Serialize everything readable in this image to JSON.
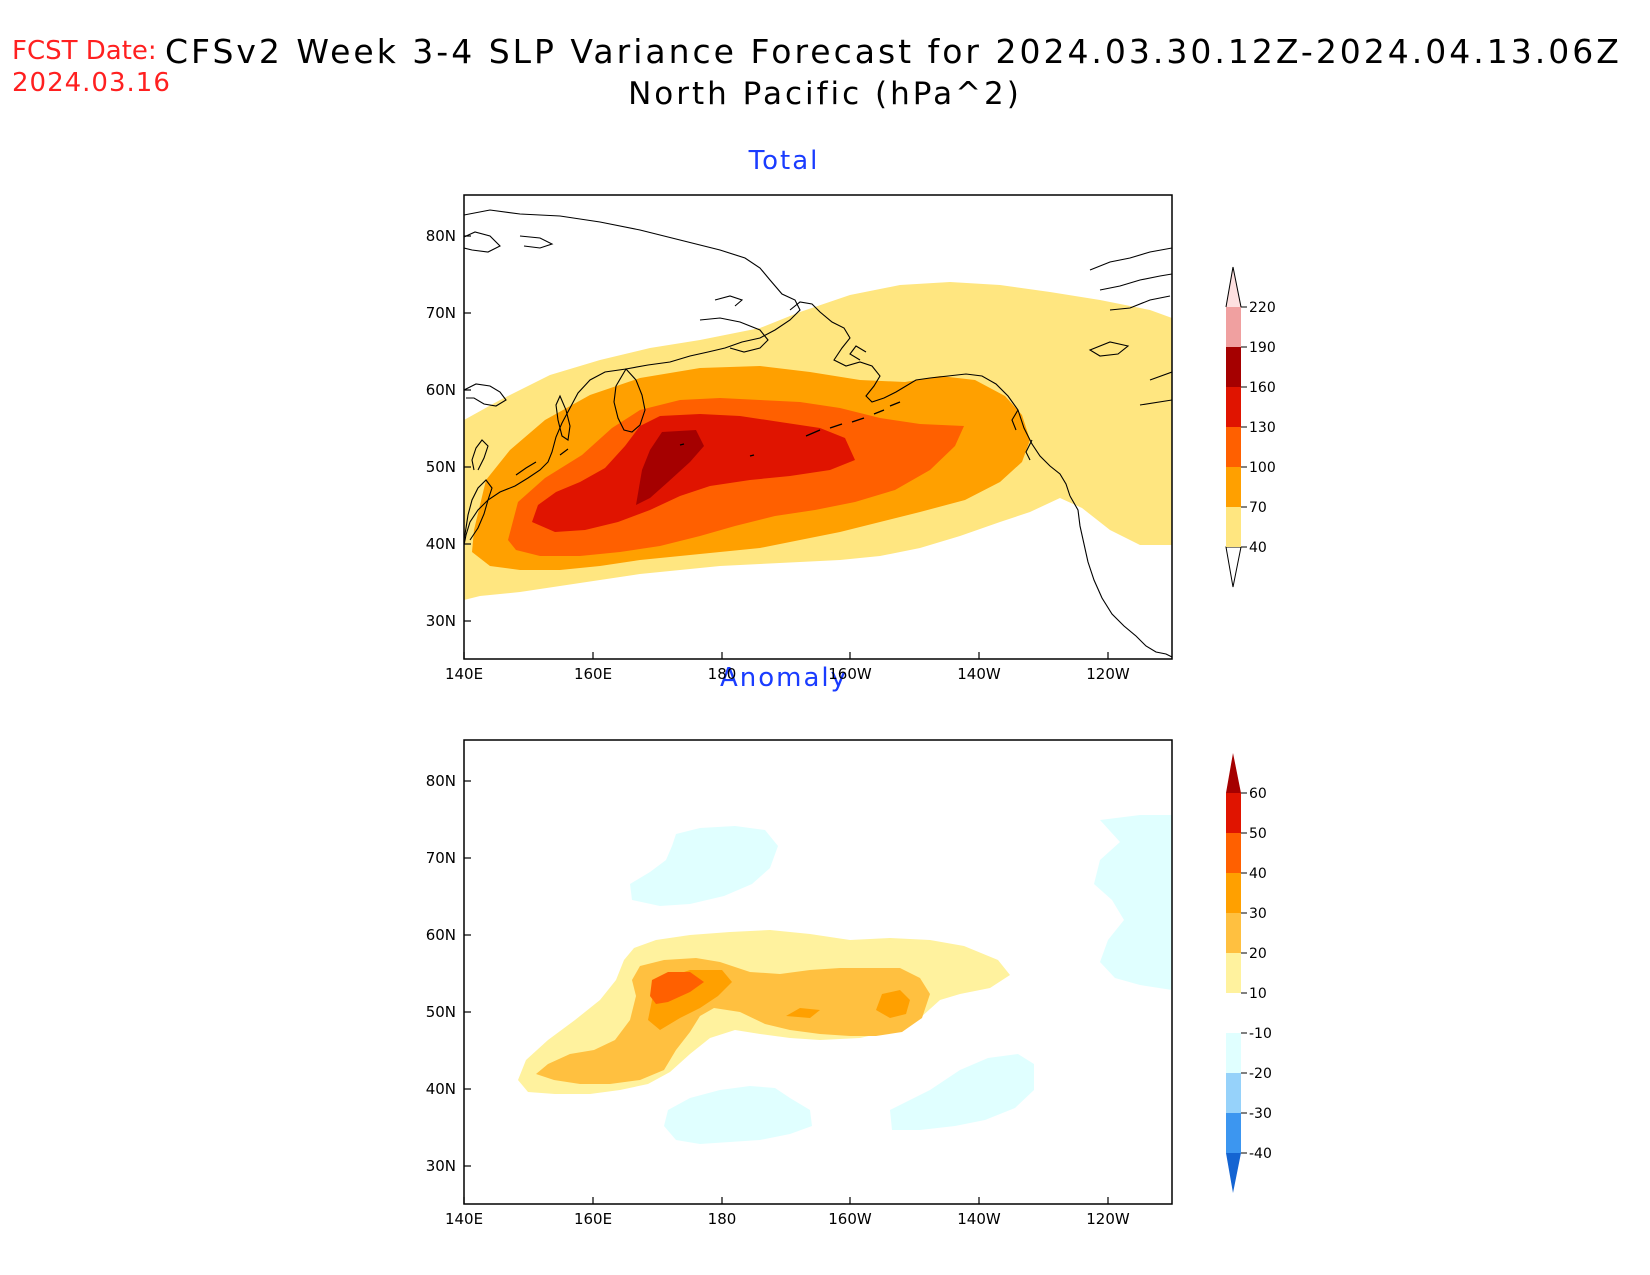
{
  "header": {
    "fcst_label": "FCST Date:",
    "fcst_date": "2024.03.16",
    "title": "CFSv2 Week 3-4 SLP Variance Forecast for 2024.03.30.12Z-2024.04.13.06Z",
    "subtitle": "North Pacific (hPa^2)"
  },
  "map_axes": {
    "lat_ticks": [
      "80N",
      "70N",
      "60N",
      "50N",
      "40N",
      "30N"
    ],
    "lon_ticks": [
      "140E",
      "160E",
      "180",
      "160W",
      "140W",
      "120W"
    ]
  },
  "panels": [
    {
      "title": "Total",
      "colorbar": {
        "levels": [
          "40",
          "70",
          "100",
          "130",
          "160",
          "190",
          "220"
        ],
        "colors": [
          "#ffe680",
          "#ffa000",
          "#ff6000",
          "#e01400",
          "#a50000",
          "#f0a0a0",
          "#fde0e0"
        ]
      }
    },
    {
      "title": "Anomaly",
      "colorbar": {
        "levels": [
          "60",
          "50",
          "40",
          "30",
          "20",
          "10",
          "-10",
          "-20",
          "-30",
          "-40"
        ],
        "colors_top_to_bottom": [
          "#a50000",
          "#e01400",
          "#ff6000",
          "#ffa000",
          "#ffc040",
          "#fff29e",
          "#ffffff",
          "#e0ffff",
          "#96d2fa",
          "#3c96f0",
          "#1464d2"
        ]
      }
    }
  ]
}
